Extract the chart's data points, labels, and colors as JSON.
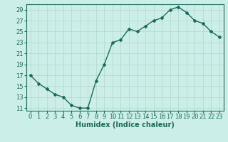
{
  "x": [
    0,
    1,
    2,
    3,
    4,
    5,
    6,
    7,
    8,
    9,
    10,
    11,
    12,
    13,
    14,
    15,
    16,
    17,
    18,
    19,
    20,
    21,
    22,
    23
  ],
  "y": [
    17,
    15.5,
    14.5,
    13.5,
    13,
    11.5,
    11,
    11,
    16,
    19,
    23,
    23.5,
    25.5,
    25,
    26,
    27,
    27.5,
    29,
    29.5,
    28.5,
    27,
    26.5,
    25,
    24
  ],
  "line_color": "#1a6b5a",
  "marker": "D",
  "marker_size": 2,
  "bg_color": "#cceee8",
  "grid_color": "#b0d8cc",
  "xlabel": "Humidex (Indice chaleur)",
  "xlim": [
    -0.5,
    23.5
  ],
  "ylim": [
    10.5,
    30.0
  ],
  "yticks": [
    11,
    13,
    15,
    17,
    19,
    21,
    23,
    25,
    27,
    29
  ],
  "xticks": [
    0,
    1,
    2,
    3,
    4,
    5,
    6,
    7,
    8,
    9,
    10,
    11,
    12,
    13,
    14,
    15,
    16,
    17,
    18,
    19,
    20,
    21,
    22,
    23
  ],
  "xlabel_fontsize": 7,
  "tick_fontsize": 6,
  "line_width": 1.0
}
